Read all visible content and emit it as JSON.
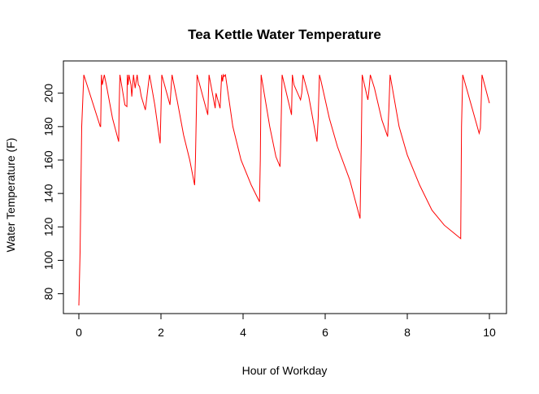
{
  "chart_data": {
    "type": "line",
    "title": "Tea Kettle Water Temperature",
    "xlabel": "Hour of Workday",
    "ylabel": "Water Temperature (F)",
    "xlim": [
      0,
      10
    ],
    "ylim": [
      73,
      212
    ],
    "x_ticks": [
      0,
      2,
      4,
      6,
      8,
      10
    ],
    "y_ticks": [
      80,
      100,
      120,
      140,
      160,
      180,
      200
    ],
    "grid": false,
    "legend": "none",
    "series_color": "#ff0000",
    "series": [
      {
        "x": [
          0.0,
          0.03,
          0.07,
          0.12,
          0.52,
          0.53,
          0.55,
          0.57,
          0.62,
          0.67,
          0.82,
          0.97,
          0.98,
          1.0,
          1.12,
          1.17,
          1.18,
          1.2,
          1.22,
          1.27,
          1.29,
          1.33,
          1.37,
          1.42,
          1.45,
          1.48,
          1.52,
          1.62,
          1.72,
          1.75,
          1.85,
          1.98,
          2.0,
          2.02,
          2.22,
          2.27,
          2.4,
          2.55,
          2.7,
          2.82,
          2.84,
          2.88,
          3.14,
          3.17,
          3.32,
          3.34,
          3.44,
          3.48,
          3.5,
          3.52,
          3.54,
          3.57,
          3.75,
          3.95,
          4.2,
          4.4,
          4.42,
          4.44,
          4.65,
          4.8,
          4.9,
          4.92,
          4.95,
          5.18,
          5.2,
          5.24,
          5.4,
          5.43,
          5.46,
          5.6,
          5.8,
          5.83,
          5.86,
          5.9,
          6.1,
          6.3,
          6.6,
          6.85,
          6.88,
          6.9,
          7.04,
          7.06,
          7.1,
          7.2,
          7.38,
          7.52,
          7.55,
          7.58,
          7.8,
          8.0,
          8.3,
          8.6,
          8.9,
          9.15,
          9.3,
          9.32,
          9.35,
          9.75,
          9.78,
          9.82,
          10.0
        ],
        "y": [
          73,
          105,
          180,
          211,
          180,
          180,
          211,
          205,
          211,
          205,
          185,
          171,
          190,
          211,
          193,
          192,
          211,
          205,
          211,
          205,
          198,
          211,
          203,
          211,
          205,
          204,
          198,
          190,
          211,
          207,
          193,
          170,
          190,
          211,
          193,
          211,
          195,
          175,
          160,
          145,
          160,
          211,
          187,
          211,
          191,
          200,
          191,
          211,
          207,
          211,
          210,
          211,
          180,
          160,
          145,
          135,
          160,
          211,
          180,
          162,
          156,
          175,
          211,
          187,
          211,
          205,
          196,
          200,
          211,
          198,
          171,
          185,
          211,
          207,
          185,
          168,
          148,
          125,
          170,
          211,
          196,
          200,
          211,
          203,
          184,
          174,
          190,
          211,
          180,
          163,
          145,
          130,
          121,
          116,
          113,
          180,
          211,
          176,
          179,
          211,
          194
        ]
      }
    ]
  }
}
